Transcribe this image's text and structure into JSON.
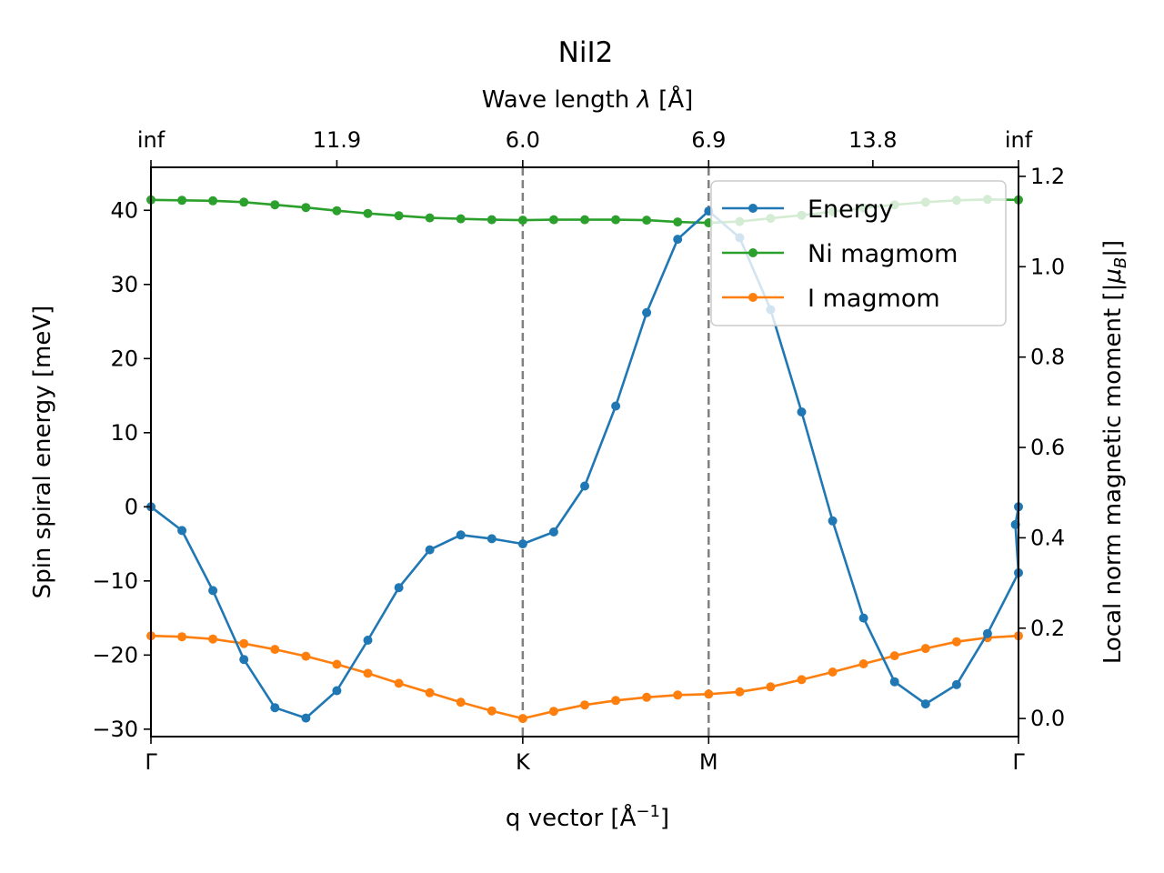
{
  "chart_data": {
    "type": "line",
    "title": "NiI2",
    "xlabel": "q vector [Å",
    "xlabel_sup": "−1",
    "xlabel_end": "]",
    "ylabel": "Spin spiral energy [meV]",
    "y2label": "Local norm magnetic moment [|",
    "y2label_mu": "μ",
    "y2label_sub": "B",
    "y2label_end": "|]",
    "top_xlabel": "Wave length ",
    "top_xlabel_lambda": "λ",
    "top_xlabel_end": " [Å]",
    "x_range": [
      0,
      28
    ],
    "ylim": [
      -31,
      45.8
    ],
    "y2lim": [
      -0.04,
      1.22
    ],
    "yticks": [
      -30,
      -20,
      -10,
      0,
      10,
      20,
      30,
      40
    ],
    "y2ticks": [
      0.0,
      0.2,
      0.4,
      0.6,
      0.8,
      1.0,
      1.2
    ],
    "y2tick_labels": [
      "0.0",
      "0.2",
      "0.4",
      "0.6",
      "0.8",
      "1.0",
      "1.2"
    ],
    "xticks": [
      {
        "x": 0,
        "label": "Γ"
      },
      {
        "x": 12,
        "label": "K"
      },
      {
        "x": 18,
        "label": "M"
      },
      {
        "x": 28,
        "label": "Γ"
      }
    ],
    "top_ticks": [
      {
        "x": 0,
        "label": "inf"
      },
      {
        "x": 6,
        "label": "11.9"
      },
      {
        "x": 12,
        "label": "6.0"
      },
      {
        "x": 18,
        "label": "6.9"
      },
      {
        "x": 23.3,
        "label": "13.8"
      },
      {
        "x": 28,
        "label": "inf"
      }
    ],
    "vlines": [
      12,
      18
    ],
    "x": [
      0,
      1,
      2,
      3,
      4,
      5,
      6,
      7,
      8,
      9,
      10,
      11,
      12,
      13,
      14,
      15,
      16,
      17,
      18,
      19,
      20,
      21,
      22,
      23,
      24,
      25,
      26,
      27,
      28
    ],
    "series": [
      {
        "name": "Energy",
        "color": "#1f77b4",
        "axis": "left",
        "values": [
          0,
          -3.2,
          -11.3,
          -20.6,
          -27.1,
          -28.5,
          -24.8,
          -18,
          -10.9,
          -5.8,
          -3.8,
          -4.3,
          -5,
          -3.4,
          2.8,
          13.6,
          26.2,
          36.1,
          39.9,
          36.3,
          26.6,
          12.8,
          -1.9,
          -15,
          -23.6,
          -26.6,
          -24,
          -17.1,
          -8.9
        ]
      },
      {
        "name": "Ni magmom",
        "color": "#2ca02c",
        "axis": "right",
        "values": [
          1.148,
          1.147,
          1.146,
          1.143,
          1.137,
          1.131,
          1.124,
          1.118,
          1.113,
          1.108,
          1.106,
          1.104,
          1.103,
          1.104,
          1.104,
          1.104,
          1.103,
          1.099,
          1.097,
          1.1,
          1.107,
          1.114,
          1.122,
          1.13,
          1.137,
          1.143,
          1.147,
          1.149,
          1.148
        ]
      },
      {
        "name": "I magmom",
        "color": "#ff7f0e",
        "axis": "right",
        "values": [
          0.183,
          0.181,
          0.176,
          0.166,
          0.153,
          0.138,
          0.12,
          0.1,
          0.078,
          0.057,
          0.036,
          0.017,
          0.0,
          0.016,
          0.03,
          0.04,
          0.047,
          0.052,
          0.054,
          0.059,
          0.07,
          0.086,
          0.103,
          0.121,
          0.139,
          0.155,
          0.17,
          0.179,
          0.183
        ]
      }
    ],
    "extra_points": [
      {
        "series": "Energy",
        "x": 27.9,
        "y": -2.4
      },
      {
        "series": "Energy",
        "x": 28,
        "y": 0
      }
    ],
    "legend": {
      "location": "top-right",
      "entries": [
        "Energy",
        "Ni magmom",
        "I magmom"
      ]
    },
    "vline_color": "#808080"
  }
}
